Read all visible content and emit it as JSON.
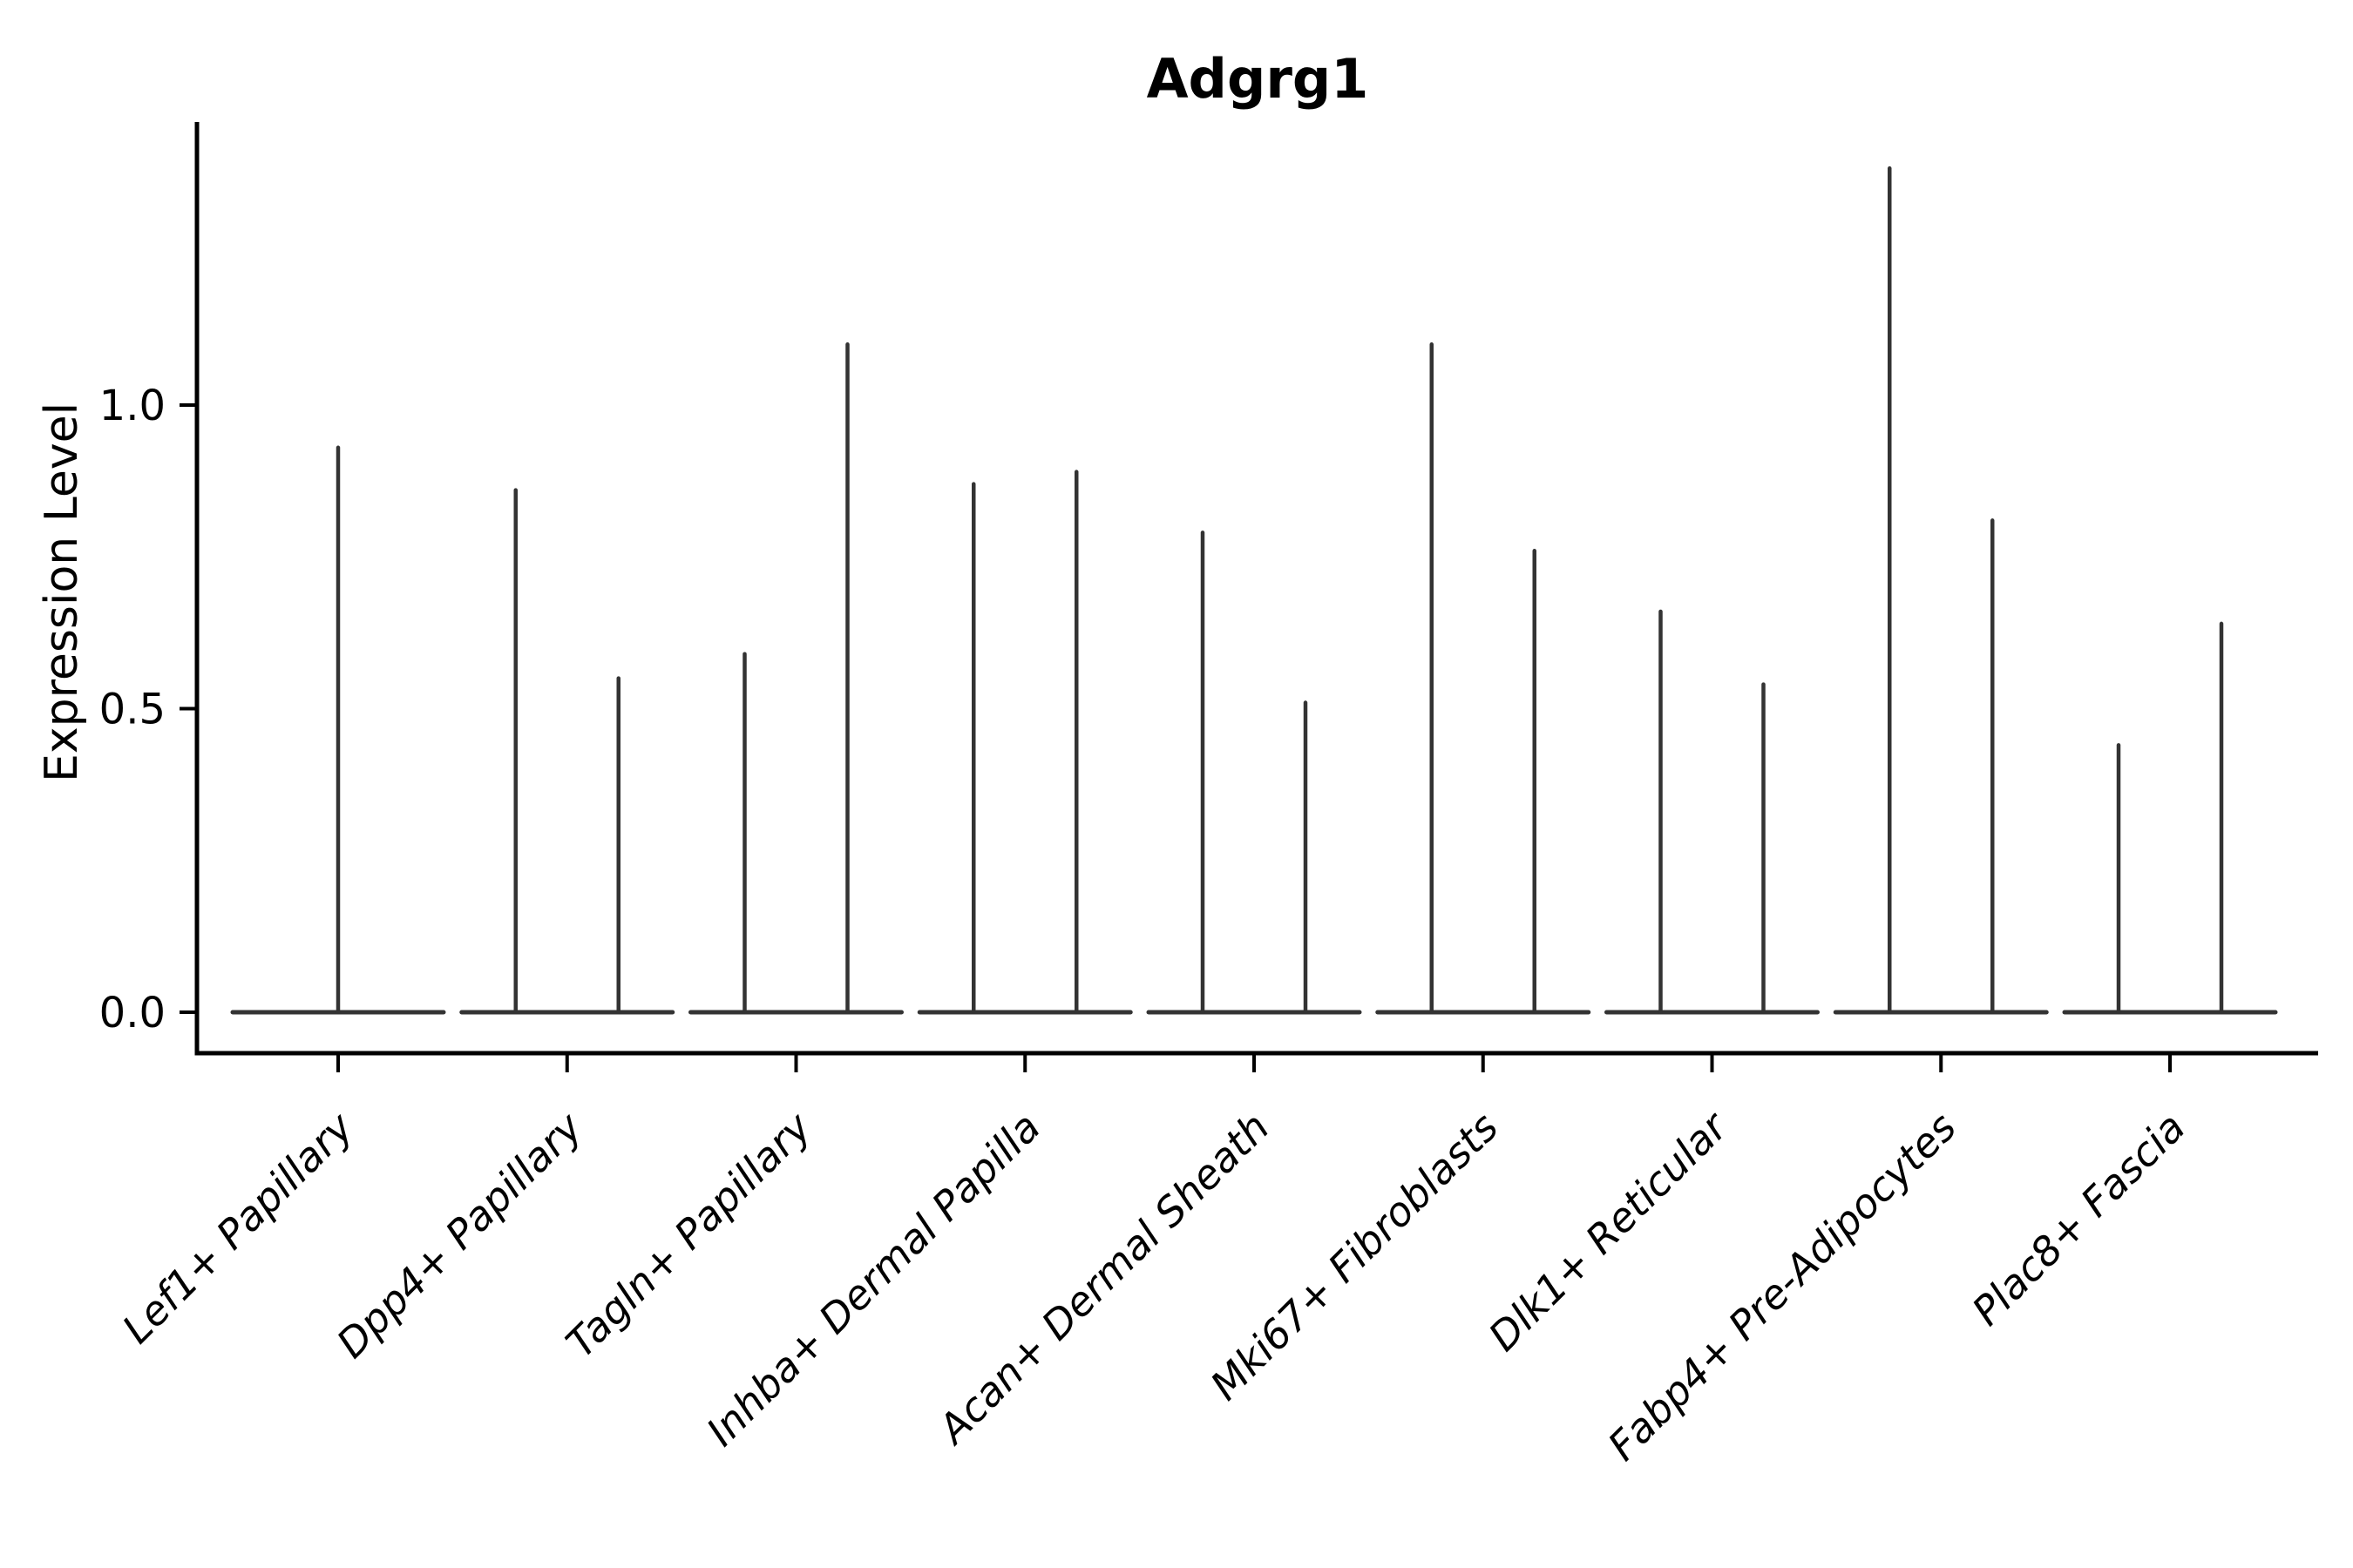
{
  "chart_data": {
    "type": "violin",
    "title": "Adgrg1",
    "xlabel": "",
    "ylabel": "Expression Level",
    "categories": [
      "Lef1+ Papillary",
      "Dpp4+ Papillary",
      "Tagln+ Papillary",
      "Inhba+ Dermal Papilla",
      "Acan+ Dermal Sheath",
      "Mki67+ Fibroblasts",
      "Dlk1+ Reticular",
      "Fabp4+ Pre-Adipocytes",
      "Plac8+ Fascia"
    ],
    "series": [
      {
        "category": "Lef1+ Papillary",
        "violins": [
          {
            "max": 0.93
          }
        ]
      },
      {
        "category": "Dpp4+ Papillary",
        "violins": [
          {
            "max": 0.86
          },
          {
            "max": 0.55
          }
        ]
      },
      {
        "category": "Tagln+ Papillary",
        "violins": [
          {
            "max": 0.59
          },
          {
            "max": 1.1
          }
        ]
      },
      {
        "category": "Inhba+ Dermal Papilla",
        "violins": [
          {
            "max": 0.87
          },
          {
            "max": 0.89
          }
        ]
      },
      {
        "category": "Acan+ Dermal Sheath",
        "violins": [
          {
            "max": 0.79
          },
          {
            "max": 0.51
          }
        ]
      },
      {
        "category": "Mki67+ Fibroblasts",
        "violins": [
          {
            "max": 1.1
          },
          {
            "max": 0.76
          }
        ]
      },
      {
        "category": "Dlk1+ Reticular",
        "violins": [
          {
            "max": 0.66
          },
          {
            "max": 0.54
          }
        ]
      },
      {
        "category": "Fabp4+ Pre-Adipocytes",
        "violins": [
          {
            "max": 1.39
          },
          {
            "max": 0.81
          }
        ]
      },
      {
        "category": "Plac8+ Fascia",
        "violins": [
          {
            "max": 0.44
          },
          {
            "max": 0.64
          }
        ]
      }
    ],
    "violin_shape": "density mass at 0: each violin renders as a flat horizontal base line at y=0 with a thin vertical spike up to its max value",
    "yticks": [
      "0.0",
      "0.5",
      "1.0"
    ],
    "ytick_values": [
      0.0,
      0.5,
      1.0
    ],
    "ylim": [
      0,
      1.47
    ],
    "x_tick_label_rotation_deg": 45,
    "grid": false,
    "legend": "none",
    "colors": {
      "line": "#333333",
      "axis": "#000000",
      "text": "#000000",
      "background": "#ffffff"
    }
  }
}
